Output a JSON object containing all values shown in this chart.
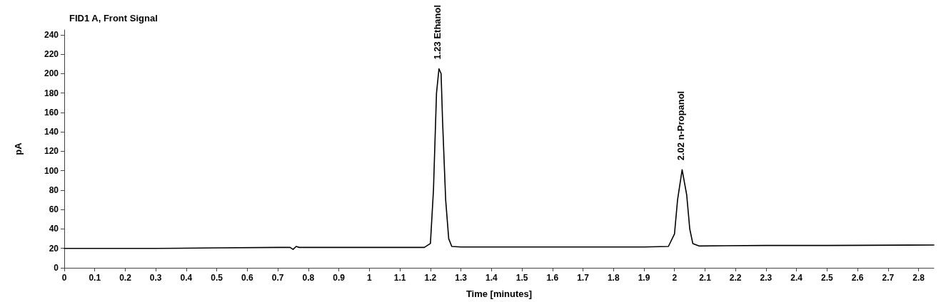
{
  "chart_data": {
    "type": "line",
    "title": "FID1 A, Front Signal",
    "xlabel": "Time [minutes]",
    "ylabel": "pA",
    "x": [
      0,
      0.3,
      0.5,
      0.7,
      0.74,
      0.75,
      0.76,
      0.77,
      1.0,
      1.18,
      1.2,
      1.21,
      1.22,
      1.228,
      1.235,
      1.24,
      1.25,
      1.26,
      1.27,
      1.3,
      1.6,
      1.9,
      1.98,
      2.0,
      2.01,
      2.025,
      2.04,
      2.05,
      2.06,
      2.08,
      2.3,
      2.5,
      2.85
    ],
    "series": [
      {
        "color": "#000000",
        "values": [
          20,
          20,
          20.5,
          21,
          21,
          19,
          22,
          21,
          21,
          21,
          25,
          80,
          180,
          205,
          200,
          150,
          70,
          30,
          22,
          21.5,
          21.5,
          21.5,
          22,
          35,
          70,
          101,
          75,
          40,
          25,
          22.5,
          23,
          23,
          23.5
        ]
      }
    ],
    "annotations": [
      {
        "text": "1.23 Ethanol",
        "x": 1.228,
        "y": 205
      },
      {
        "text": "2.02 n-Propanol",
        "x": 2.025,
        "y": 101
      }
    ],
    "xlim": [
      0,
      2.85
    ],
    "xticks": [
      0,
      0.1,
      0.2,
      0.3,
      0.4,
      0.5,
      0.6,
      0.7,
      0.8,
      0.9,
      1,
      1.1,
      1.2,
      1.3,
      1.4,
      1.5,
      1.6,
      1.7,
      1.8,
      1.9,
      2,
      2.1,
      2.2,
      2.3,
      2.4,
      2.5,
      2.6,
      2.7,
      2.8
    ],
    "ylim": [
      0,
      245
    ],
    "yticks": [
      0,
      20,
      40,
      60,
      80,
      100,
      120,
      140,
      160,
      180,
      200,
      220,
      240
    ],
    "grid": false,
    "marker": "none",
    "line_style": "solid"
  }
}
